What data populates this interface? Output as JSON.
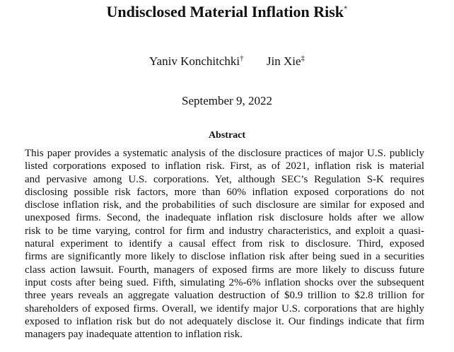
{
  "header": {
    "title": "Undisclosed Material Inflation Risk",
    "title_mark": "*",
    "authors": [
      {
        "name": "Yaniv Konchitchki",
        "mark": "†"
      },
      {
        "name": "Jin Xie",
        "mark": "‡"
      }
    ],
    "date": "September 9, 2022"
  },
  "abstract": {
    "heading": "Abstract",
    "lines": [
      "This paper provides a systematic analysis of the disclosure practices of major U.S. publicly",
      "listed corporations exposed to inflation risk. First, as of 2021, inflation risk is material",
      "and pervasive among U.S. corporations. Yet, although SEC’s Regulation S-K requires",
      "disclosing possible risk factors, more than 60% inflation exposed corporations do not",
      "disclose inflation risk, and the probabilities of such disclosure are similar for exposed and",
      "unexposed firms. Second, the inadequate inflation risk disclosure holds after we allow",
      "risk to be time varying, control for firm and industry characteristics, and exploit a quasi-",
      "natural experiment to identify a causal effect from risk to disclosure. Third, exposed",
      "firms are significantly more likely to disclose inflation risk after being sued in a securities",
      "class action lawsuit. Fourth, managers of exposed firms are more likely to discuss future",
      "input costs after being sued. Fifth, simulating 2%-6% inflation shocks over the subsequent",
      "three years reveals an aggregate valuation destruction of $0.9 trillion to $2.8 trillion for",
      "shareholders of exposed firms. Overall, we identify major U.S. corporations that are highly",
      "exposed to inflation risk but do not adequately disclose it. Our findings indicate that firm",
      "managers pay inadequate attention to inflation risk."
    ]
  }
}
